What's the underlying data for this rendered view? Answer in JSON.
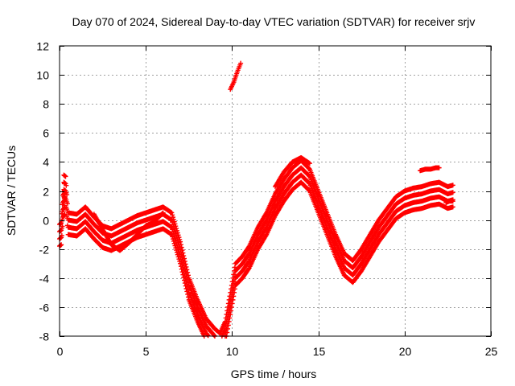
{
  "chart_data": {
    "type": "scatter",
    "title": "Day 070 of 2024, Sidereal Day-to-day VTEC variation (SDTVAR) for receiver srjv",
    "xlabel": "GPS time / hours",
    "ylabel": "SDTVAR / TECUs",
    "xlim": [
      0,
      25
    ],
    "ylim": [
      -8,
      12
    ],
    "xticks": [
      0,
      5,
      10,
      15,
      20,
      25
    ],
    "yticks": [
      -8,
      -6,
      -4,
      -2,
      0,
      2,
      4,
      6,
      8,
      10,
      12
    ],
    "grid": true,
    "marker": "plus",
    "color": "#ff0000",
    "series": [
      {
        "points": [
          [
            0.0,
            -0.3
          ],
          [
            0.1,
            -0.2
          ],
          [
            0.2,
            1.7
          ],
          [
            0.3,
            1.9
          ],
          [
            0.25,
            3.1
          ],
          [
            0.35,
            3.0
          ],
          [
            0.5,
            0.5
          ],
          [
            1.0,
            0.4
          ],
          [
            1.5,
            0.9
          ],
          [
            2.0,
            0.2
          ],
          [
            2.5,
            -0.4
          ],
          [
            3.0,
            -0.6
          ],
          [
            3.5,
            -0.3
          ],
          [
            4.0,
            0.0
          ],
          [
            4.5,
            0.3
          ],
          [
            5.0,
            0.5
          ],
          [
            5.5,
            0.7
          ],
          [
            6.0,
            0.9
          ],
          [
            6.5,
            0.5
          ],
          [
            7.0,
            -1.5
          ],
          [
            7.5,
            -4.0
          ],
          [
            8.0,
            -5.5
          ],
          [
            8.5,
            -6.8
          ],
          [
            9.0,
            -7.5
          ],
          [
            9.3,
            -7.8
          ],
          [
            9.6,
            -7.0
          ],
          [
            9.9,
            -5.0
          ],
          [
            10.2,
            -3.0
          ],
          [
            10.6,
            -2.5
          ],
          [
            11.0,
            -1.8
          ],
          [
            11.5,
            -0.5
          ],
          [
            12.0,
            0.5
          ],
          [
            12.5,
            1.8
          ],
          [
            13.0,
            2.8
          ],
          [
            13.5,
            3.6
          ],
          [
            14.0,
            4.1
          ],
          [
            14.5,
            3.5
          ],
          [
            15.0,
            2.0
          ],
          [
            15.5,
            0.5
          ],
          [
            16.0,
            -1.0
          ],
          [
            16.5,
            -2.3
          ],
          [
            17.0,
            -2.8
          ],
          [
            17.5,
            -2.0
          ],
          [
            18.0,
            -1.0
          ],
          [
            18.5,
            0.0
          ],
          [
            19.0,
            0.8
          ],
          [
            19.5,
            1.6
          ],
          [
            20.0,
            2.0
          ],
          [
            20.5,
            2.2
          ],
          [
            21.0,
            2.3
          ],
          [
            21.5,
            2.5
          ],
          [
            22.0,
            2.6
          ],
          [
            22.5,
            2.3
          ],
          [
            22.8,
            2.4
          ]
        ],
        "band_offsets": [
          0.0,
          -0.5,
          -1.0,
          -1.5
        ]
      },
      {
        "points": [
          [
            2.0,
            0.4
          ],
          [
            3.0,
            -1.7
          ],
          [
            3.5,
            -2.1
          ],
          [
            4.0,
            -1.6
          ],
          [
            4.5,
            -1.0
          ],
          [
            5.0,
            -0.4
          ],
          [
            5.5,
            -0.1
          ],
          [
            6.0,
            0.5
          ]
        ]
      },
      {
        "points": [
          [
            12.5,
            2.3
          ],
          [
            13.0,
            3.3
          ],
          [
            13.5,
            4.0
          ],
          [
            14.0,
            4.3
          ],
          [
            14.5,
            3.9
          ]
        ]
      },
      {
        "points": [
          [
            9.9,
            9.0
          ],
          [
            10.1,
            9.5
          ],
          [
            10.3,
            10.2
          ],
          [
            10.5,
            10.8
          ]
        ]
      },
      {
        "points": [
          [
            20.9,
            3.4
          ],
          [
            21.2,
            3.5
          ],
          [
            21.5,
            3.5
          ],
          [
            21.8,
            3.6
          ],
          [
            22.0,
            3.6
          ]
        ]
      },
      {
        "points": [
          [
            22.4,
            1.2
          ],
          [
            22.6,
            1.3
          ],
          [
            22.8,
            1.3
          ]
        ]
      }
    ]
  }
}
